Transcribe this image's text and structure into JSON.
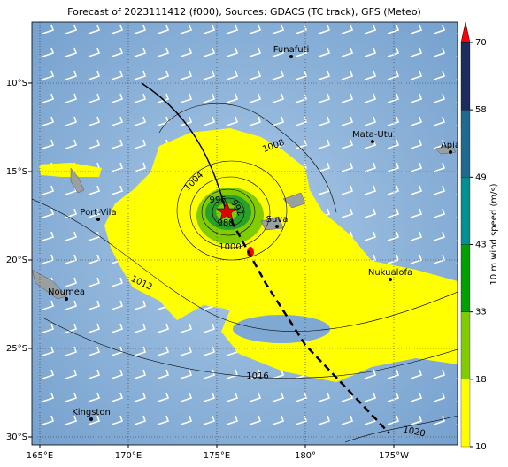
{
  "title": "Forecast of 2023111412 (f000), Sources: GDACS (TC track), GFS (Meteo)",
  "lon_ticks": [
    {
      "value": 165,
      "label": "165°E"
    },
    {
      "value": 170,
      "label": "170°E"
    },
    {
      "value": 175,
      "label": "175°E"
    },
    {
      "value": 180,
      "label": "180°"
    },
    {
      "value": -175,
      "label": "175°W"
    }
  ],
  "lat_ticks": [
    {
      "value": -10,
      "label": "10°S"
    },
    {
      "value": -15,
      "label": "15°S"
    },
    {
      "value": -20,
      "label": "20°S"
    },
    {
      "value": -25,
      "label": "25°S"
    },
    {
      "value": -30,
      "label": "30°S"
    }
  ],
  "colorbar": {
    "label": "10 m wind speed (m/s)",
    "levels": [
      10,
      18,
      33,
      43,
      49,
      58,
      70
    ],
    "colors": [
      "#ffff00",
      "#80cc00",
      "#00a000",
      "#009090",
      "#1f6b8f",
      "#1c2c5c"
    ],
    "extend_color": "#ff0000"
  },
  "places": [
    {
      "name": "Funafuti",
      "lon": 179.2,
      "lat": -8.5
    },
    {
      "name": "Mata-Utu",
      "lon": -176.2,
      "lat": -13.3
    },
    {
      "name": "Apia",
      "lon": -171.8,
      "lat": -13.9
    },
    {
      "name": "Suva",
      "lon": 178.4,
      "lat": -18.1
    },
    {
      "name": "Port-Vila",
      "lon": 168.3,
      "lat": -17.7
    },
    {
      "name": "Noumea",
      "lon": 166.5,
      "lat": -22.2
    },
    {
      "name": "Nukualofa",
      "lon": -175.2,
      "lat": -21.1
    },
    {
      "name": "Kingston",
      "lon": 167.9,
      "lat": -29.0
    }
  ],
  "isobar_labels": [
    "1008",
    "1004",
    "996",
    "992",
    "988",
    "1000",
    "1012",
    "1016",
    "1020"
  ]
}
